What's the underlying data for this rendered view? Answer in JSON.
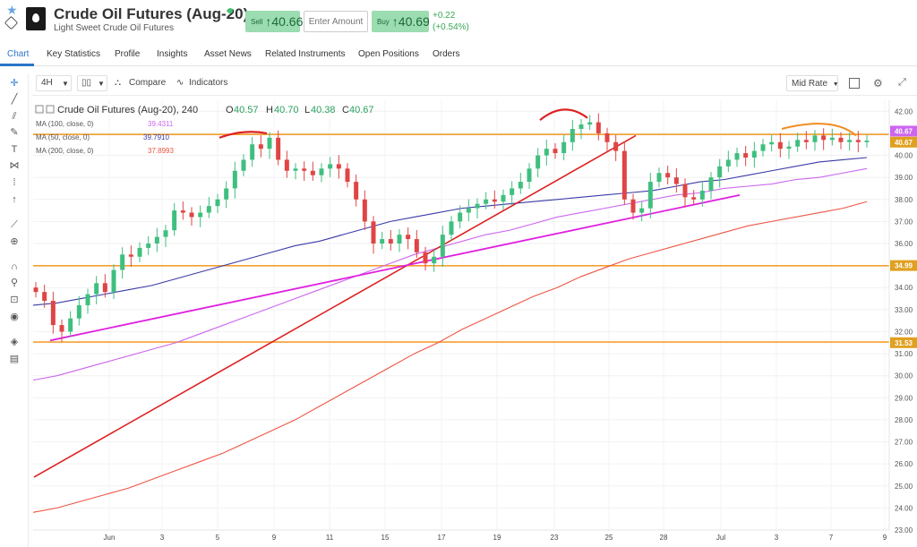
{
  "header": {
    "title": "Crude Oil Futures (Aug-20)",
    "subtitle": "Light Sweet Crude Oil Futures",
    "sell_label": "Sell",
    "sell_price": "↑40.66",
    "amount_placeholder": "Enter Amount",
    "buy_label": "Buy",
    "buy_price": "↑40.69",
    "change": "+0.22",
    "change_pct": "(+0.54%)"
  },
  "tabs": [
    "Chart",
    "Key Statistics",
    "Profile",
    "Insights",
    "Asset News",
    "Related Instruments",
    "Open Positions",
    "Orders"
  ],
  "toolbar": {
    "interval": "4H",
    "compare": "Compare",
    "indicators": "Indicators",
    "price_mode": "Mid Rate"
  },
  "legend": {
    "name": "Crude Oil Futures (Aug-20), 240",
    "o_label": "O",
    "o": "40.57",
    "h_label": "H",
    "h": "40.70",
    "l_label": "L",
    "l": "40.38",
    "c_label": "C",
    "c": "40.67",
    "ma100_label": "MA (100, close, 0)",
    "ma100": "39.4311",
    "ma50_label": "MA (50, close, 0)",
    "ma50": "39.7910",
    "ma200_label": "MA (200, close, 0)",
    "ma200": "37.8993"
  },
  "colors": {
    "up": "#3fbf7f",
    "down": "#e04444",
    "ma100": "#cc66ee",
    "ma50": "#3a3aa8",
    "ma200": "#ee5544",
    "horizontal_line": "#f4a030",
    "channel_line": "#e020e0",
    "trend_line": "#dd2222",
    "price_tag": "#e0a020"
  },
  "chart_data": {
    "type": "candlestick",
    "y_ticks": [
      "42.00",
      "41.00",
      "40.00",
      "39.00",
      "38.00",
      "37.00",
      "36.00",
      "35.00",
      "34.00",
      "33.00",
      "32.00",
      "31.00",
      "30.00",
      "29.00",
      "28.00",
      "27.00",
      "26.00",
      "25.00",
      "24.00",
      "23.00"
    ],
    "ylim": [
      23,
      42.5
    ],
    "x_ticks": [
      "Jun",
      "3",
      "5",
      "9",
      "11",
      "15",
      "17",
      "19",
      "23",
      "25",
      "28",
      "Jul",
      "3",
      "7",
      "9"
    ],
    "price_tags": [
      {
        "label": "40.67",
        "value": 41.1,
        "color": "#cc66ee"
      },
      {
        "label": "40.67",
        "value": 40.6,
        "color": "#e0a020"
      },
      {
        "label": "34.99",
        "value": 35.0,
        "color": "#e0a020"
      },
      {
        "label": "31.53",
        "value": 31.5,
        "color": "#e0a020"
      }
    ],
    "horizontal_levels": [
      40.95,
      34.99,
      31.53
    ],
    "candles_close_path": [
      33.8,
      33.4,
      32.3,
      32.0,
      32.6,
      33.2,
      33.7,
      34.2,
      33.8,
      34.8,
      35.5,
      35.4,
      35.8,
      36.0,
      36.3,
      36.6,
      37.5,
      37.4,
      37.2,
      37.4,
      37.7,
      38.0,
      38.5,
      39.3,
      39.8,
      40.5,
      40.3,
      40.8,
      39.8,
      39.3,
      39.4,
      39.3,
      39.1,
      39.4,
      39.6,
      39.4,
      38.8,
      38.0,
      37.0,
      36.0,
      36.2,
      36.0,
      36.4,
      36.2,
      35.6,
      35.1,
      35.4,
      36.4,
      37.0,
      37.4,
      37.6,
      37.8,
      38.0,
      37.9,
      38.2,
      38.5,
      38.8,
      39.4,
      40.0,
      40.3,
      40.1,
      40.6,
      41.2,
      41.4,
      41.5,
      41.0,
      40.6,
      40.2,
      38.0,
      37.4,
      37.6,
      38.8,
      39.2,
      39.0,
      38.7,
      38.1,
      38.0,
      38.4,
      39.0,
      39.5,
      39.8,
      40.1,
      39.9,
      40.2,
      40.5,
      40.6,
      40.3,
      40.4,
      40.7,
      40.6,
      40.9,
      40.7,
      40.8,
      40.6,
      40.7,
      40.6,
      40.67
    ],
    "ma50": [
      33.2,
      33.3,
      33.5,
      33.7,
      33.9,
      34.1,
      34.4,
      34.7,
      35.0,
      35.3,
      35.6,
      35.9,
      36.1,
      36.4,
      36.7,
      37.0,
      37.2,
      37.4,
      37.6,
      37.7,
      37.8,
      37.9,
      38.0,
      38.1,
      38.2,
      38.3,
      38.4,
      38.6,
      38.8,
      38.9,
      39.1,
      39.3,
      39.5,
      39.7,
      39.8,
      39.9
    ],
    "ma100": [
      29.8,
      30.0,
      30.3,
      30.6,
      30.9,
      31.2,
      31.5,
      31.9,
      32.3,
      32.7,
      33.1,
      33.5,
      33.9,
      34.3,
      34.7,
      35.1,
      35.5,
      35.8,
      36.1,
      36.4,
      36.6,
      36.9,
      37.2,
      37.4,
      37.6,
      37.8,
      38.0,
      38.2,
      38.3,
      38.5,
      38.6,
      38.7,
      38.9,
      39.0,
      39.2,
      39.4
    ],
    "ma200": [
      23.8,
      24.0,
      24.3,
      24.6,
      24.9,
      25.3,
      25.7,
      26.1,
      26.5,
      27.0,
      27.5,
      28.0,
      28.6,
      29.2,
      29.8,
      30.4,
      31.0,
      31.5,
      32.1,
      32.6,
      33.1,
      33.6,
      34.0,
      34.5,
      34.9,
      35.3,
      35.6,
      35.9,
      36.2,
      36.5,
      36.8,
      37.0,
      37.2,
      37.4,
      37.6,
      37.9
    ]
  }
}
